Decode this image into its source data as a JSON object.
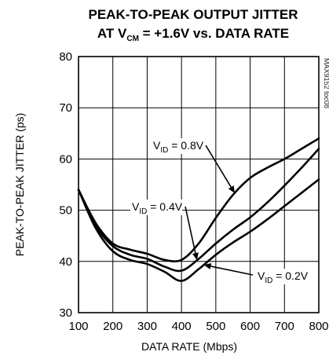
{
  "chart_data": {
    "type": "line",
    "title": "PEAK-TO-PEAK OUTPUT JITTER",
    "subtitle": {
      "prefix": "AT V",
      "subscript": "CM",
      "suffix": " = +1.6V vs. DATA RATE"
    },
    "xlabel": "DATA RATE (Mbps)",
    "ylabel": "PEAK-TO-PEAK JITTER (ps)",
    "xlim": [
      100,
      800
    ],
    "ylim": [
      30,
      80
    ],
    "xticks": [
      100,
      200,
      300,
      400,
      500,
      600,
      700,
      800
    ],
    "yticks": [
      30,
      40,
      50,
      60,
      70,
      80
    ],
    "grid": true,
    "side_note": "MAX9152 toc08",
    "series": [
      {
        "name": "VID = 0.8V",
        "label": {
          "prefix": "V",
          "subscript": "ID",
          "suffix": " = 0.8V"
        },
        "x": [
          100,
          150,
          200,
          250,
          300,
          350,
          400,
          450,
          500,
          550,
          600,
          650,
          700,
          750,
          800
        ],
        "y": [
          54,
          47.5,
          43.5,
          42.3,
          41.5,
          40.3,
          40.3,
          43.5,
          48.5,
          53,
          56.3,
          58.3,
          60,
          62,
          64
        ]
      },
      {
        "name": "VID = 0.4V",
        "label": {
          "prefix": "V",
          "subscript": "ID",
          "suffix": " = 0.4V"
        },
        "x": [
          100,
          150,
          200,
          250,
          300,
          350,
          400,
          450,
          500,
          550,
          600,
          650,
          700,
          750,
          800
        ],
        "y": [
          54,
          47,
          43,
          41.3,
          40.5,
          39,
          38.2,
          40.5,
          43.5,
          46.2,
          48.6,
          51.5,
          54.8,
          58.3,
          62
        ]
      },
      {
        "name": "VID = 0.2V",
        "label": {
          "prefix": "V",
          "subscript": "ID",
          "suffix": " = 0.2V"
        },
        "x": [
          100,
          150,
          200,
          250,
          300,
          350,
          400,
          450,
          500,
          550,
          600,
          650,
          700,
          750,
          800
        ],
        "y": [
          54,
          46.5,
          42,
          40.3,
          39.5,
          38,
          36.2,
          38.5,
          41.3,
          43.7,
          45.8,
          48.2,
          50.8,
          53.4,
          56
        ]
      }
    ]
  }
}
